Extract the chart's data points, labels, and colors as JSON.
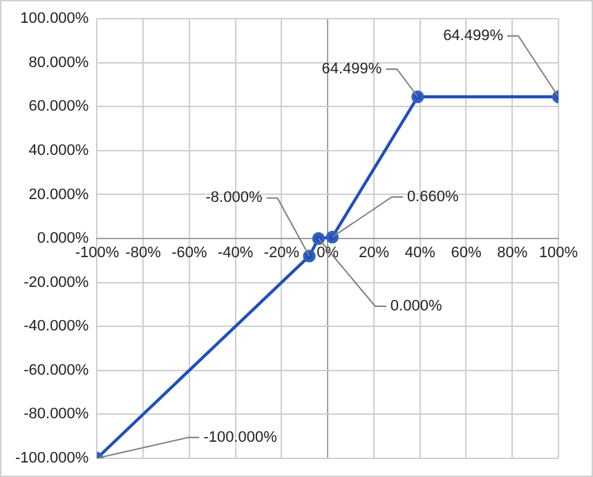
{
  "chart_data": {
    "type": "line",
    "x": [
      -100,
      -8,
      -4,
      2,
      39,
      100
    ],
    "series": [
      {
        "color": "#2050b8",
        "values": [
          -100,
          -8,
          0,
          0.66,
          64.499,
          64.499
        ],
        "value_labels": [
          "-100.000%",
          "-8.000%",
          "0.000%",
          "0.660%",
          "64.499%",
          "64.499%"
        ]
      }
    ],
    "xlim": [
      -100,
      100
    ],
    "xticks": [
      {
        "value": -100,
        "label": "-100%"
      },
      {
        "value": -80,
        "label": "-80%"
      },
      {
        "value": -60,
        "label": "-60%"
      },
      {
        "value": -40,
        "label": "-40%"
      },
      {
        "value": -20,
        "label": "-20%"
      },
      {
        "value": 0,
        "label": "0%"
      },
      {
        "value": 20,
        "label": "20%"
      },
      {
        "value": 40,
        "label": "40%"
      },
      {
        "value": 60,
        "label": "60%"
      },
      {
        "value": 80,
        "label": "80%"
      },
      {
        "value": 100,
        "label": "100%"
      }
    ],
    "ylim": [
      -100,
      100
    ],
    "yticks": [
      {
        "value": -100,
        "label": "-100.000%"
      },
      {
        "value": -80,
        "label": "-80.000%"
      },
      {
        "value": -60,
        "label": "-60.000%"
      },
      {
        "value": -40,
        "label": "-40.000%"
      },
      {
        "value": -20,
        "label": "-20.000%"
      },
      {
        "value": 0,
        "label": "0.000%"
      },
      {
        "value": 20,
        "label": "20.000%"
      },
      {
        "value": 40,
        "label": "40.000%"
      },
      {
        "value": 60,
        "label": "60.000%"
      },
      {
        "value": 80,
        "label": "80.000%"
      },
      {
        "value": 100,
        "label": "100.000%"
      }
    ],
    "grid": true,
    "marker": "circle",
    "line_style": "solid",
    "legend": false
  }
}
